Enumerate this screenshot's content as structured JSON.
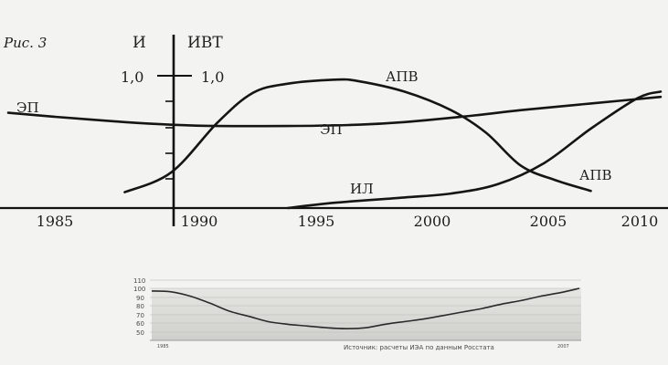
{
  "chart_data": [
    {
      "type": "line",
      "figure_label": "Рис. 3",
      "left_axis_label": "И",
      "right_axis_label": "ИВТ",
      "left_tick": "1,0",
      "right_tick": "1,0",
      "x_ticks": [
        "1985",
        "1990",
        "1995",
        "2000",
        "2005",
        "2010"
      ],
      "xlim": [
        1983,
        2011
      ],
      "ylim": [
        0,
        1.2
      ],
      "series": [
        {
          "name": "ЭП",
          "labels": [
            "ЭП",
            "ЭП"
          ],
          "x": [
            1983,
            1985,
            1988,
            1990,
            1992,
            1995,
            1998,
            2000,
            2003,
            2005,
            2008,
            2011
          ],
          "y": [
            0.72,
            0.69,
            0.65,
            0.63,
            0.62,
            0.62,
            0.63,
            0.65,
            0.7,
            0.74,
            0.79,
            0.84
          ]
        },
        {
          "name": "АПВ",
          "labels": [
            "АПВ",
            "АПВ"
          ],
          "x": [
            1988,
            1990,
            1992,
            1993.5,
            1995,
            1997,
            1998,
            2000,
            2002,
            2003.5,
            2005,
            2006.5,
            2008
          ],
          "y": [
            0.12,
            0.27,
            0.65,
            0.87,
            0.94,
            0.97,
            0.96,
            0.88,
            0.74,
            0.57,
            0.32,
            0.21,
            0.13
          ]
        },
        {
          "name": "ИЛ",
          "labels": [
            "ИЛ"
          ],
          "x": [
            1995,
            1997,
            2000,
            2002,
            2004,
            2006,
            2008,
            2010,
            2011
          ],
          "y": [
            0.0,
            0.04,
            0.08,
            0.11,
            0.18,
            0.34,
            0.6,
            0.83,
            0.88
          ]
        }
      ]
    },
    {
      "type": "line",
      "y_ticks": [
        "110",
        "100",
        "90",
        "80",
        "70",
        "60",
        "50"
      ],
      "ylim": [
        45,
        110
      ],
      "x_start_label": "1985",
      "x_end_label": "2007",
      "xlim": [
        1985,
        2007
      ],
      "source": "Источник: расчеты ИЭА по данным Росстата",
      "series": [
        {
          "x": [
            1985,
            1986,
            1987,
            1988,
            1989,
            1990,
            1991,
            1992,
            1993,
            1994,
            1995,
            1996,
            1997,
            1998,
            1999,
            2000,
            2001,
            2002,
            2003,
            2004,
            2005,
            2006,
            2007
          ],
          "y": [
            97,
            96,
            91,
            83,
            74,
            68,
            62,
            59,
            57,
            55,
            54,
            55,
            59,
            62,
            65,
            69,
            73,
            77,
            82,
            86,
            91,
            95,
            100
          ]
        }
      ]
    }
  ]
}
